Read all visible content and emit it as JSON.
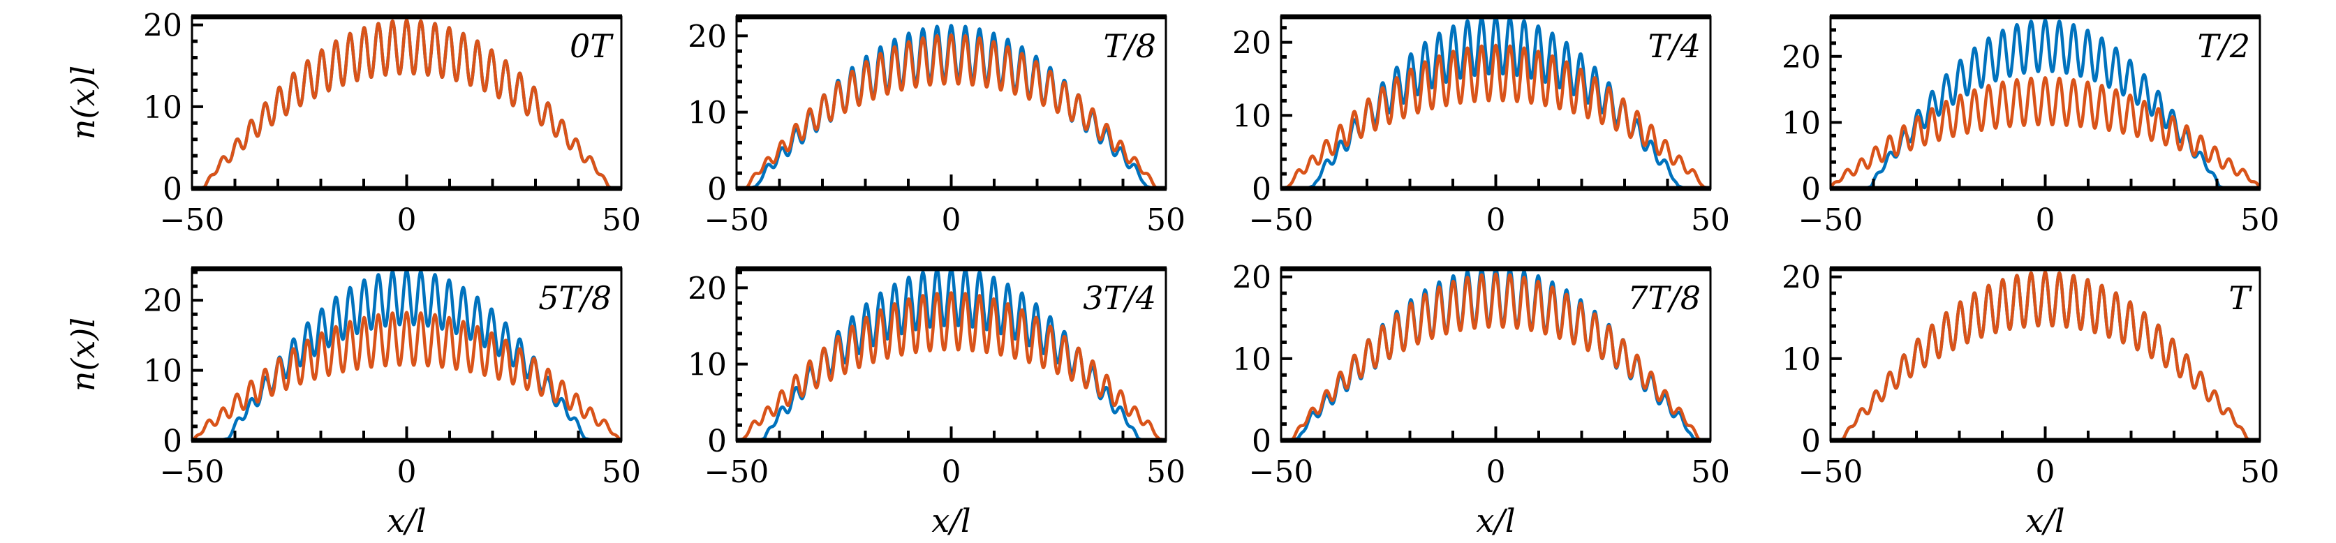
{
  "chart_data": {
    "type": "line",
    "shared": {
      "xlabel": "x/l",
      "ylabel": "n(x)l",
      "xlim": [
        -50,
        50
      ],
      "xticks": [
        -50,
        0,
        50
      ],
      "xtick_labels": [
        "−50",
        "0",
        "50"
      ],
      "yticks": [
        0,
        10,
        20
      ],
      "ytick_labels": [
        "0",
        "10",
        "20"
      ],
      "grid": false,
      "model": "n(x) = peak*(1-(x/radius)^2)*(1 + depth*cos(2*pi*x/period)), smooth tail beyond radius"
    },
    "colors": {
      "blue": "#0072BD",
      "orange": "#D95319"
    },
    "panels": [
      {
        "label": "0T",
        "ylim": [
          0,
          21
        ],
        "series": [
          {
            "name": "blue",
            "peak": 17.3,
            "radius": 47,
            "depth": 0.19,
            "period": 3.3
          },
          {
            "name": "orange",
            "peak": 17.3,
            "radius": 47,
            "depth": 0.19,
            "period": 3.3
          }
        ]
      },
      {
        "label": "T/8",
        "ylim": [
          0,
          22.5
        ],
        "series": [
          {
            "name": "blue",
            "peak": 17.8,
            "radius": 45.5,
            "depth": 0.2,
            "period": 3.3
          },
          {
            "name": "orange",
            "peak": 16.9,
            "radius": 47.5,
            "depth": 0.19,
            "period": 3.3
          }
        ]
      },
      {
        "label": "T/4",
        "ylim": [
          0,
          23.5
        ],
        "series": [
          {
            "name": "blue",
            "peak": 19.6,
            "radius": 42.5,
            "depth": 0.2,
            "period": 3.3
          },
          {
            "name": "orange",
            "peak": 15.8,
            "radius": 48.5,
            "depth": 0.24,
            "period": 3.3
          }
        ]
      },
      {
        "label": "T/2",
        "ylim": [
          0,
          26
        ],
        "series": [
          {
            "name": "blue",
            "peak": 21.6,
            "radius": 40.5,
            "depth": 0.18,
            "period": 3.3
          },
          {
            "name": "orange",
            "peak": 13.2,
            "radius": 50,
            "depth": 0.27,
            "period": 3.3
          }
        ]
      },
      {
        "label": "5T/8",
        "ylim": [
          0,
          24.5
        ],
        "series": [
          {
            "name": "blue",
            "peak": 20.4,
            "radius": 41.5,
            "depth": 0.19,
            "period": 3.3
          },
          {
            "name": "orange",
            "peak": 14.5,
            "radius": 49.5,
            "depth": 0.26,
            "period": 3.3
          }
        ]
      },
      {
        "label": "3T/4",
        "ylim": [
          0,
          22.5
        ],
        "series": [
          {
            "name": "blue",
            "peak": 18.8,
            "radius": 43.5,
            "depth": 0.2,
            "period": 3.3
          },
          {
            "name": "orange",
            "peak": 15.6,
            "radius": 48.5,
            "depth": 0.24,
            "period": 3.3
          }
        ]
      },
      {
        "label": "7T/8",
        "ylim": [
          0,
          21
        ],
        "series": [
          {
            "name": "blue",
            "peak": 17.6,
            "radius": 46,
            "depth": 0.2,
            "period": 3.3
          },
          {
            "name": "orange",
            "peak": 17.1,
            "radius": 47.2,
            "depth": 0.19,
            "period": 3.3
          }
        ]
      },
      {
        "label": "T",
        "ylim": [
          0,
          21
        ],
        "series": [
          {
            "name": "blue",
            "peak": 17.3,
            "radius": 47,
            "depth": 0.19,
            "period": 3.3
          },
          {
            "name": "orange",
            "peak": 17.3,
            "radius": 47,
            "depth": 0.19,
            "period": 3.3
          }
        ]
      }
    ]
  }
}
